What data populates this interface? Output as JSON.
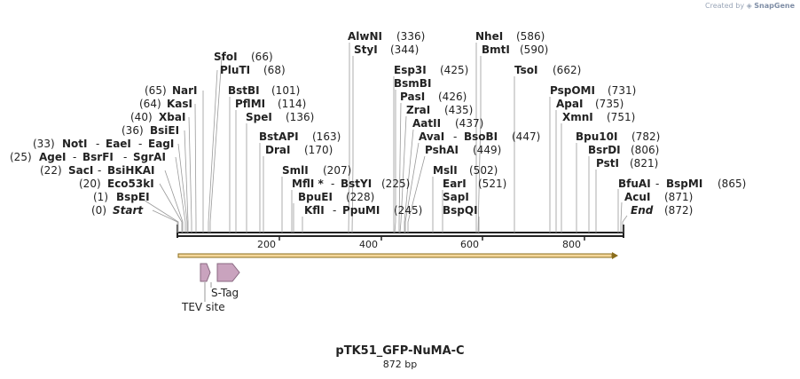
{
  "header": {
    "created_by": "Created by",
    "brand": "SnapGene"
  },
  "plasmid": {
    "name": "pTK51_GFP-NuMA-C",
    "length_label": "872 bp",
    "length": 872
  },
  "axis_ticks": [
    "200",
    "400",
    "600",
    "800"
  ],
  "sites": [
    {
      "name": "Start",
      "pos": "(0)",
      "italic": true
    },
    {
      "name": "BspEI",
      "pos": "(1)"
    },
    {
      "name": "Eco53kI",
      "pos": "(20)"
    },
    {
      "name": "SacI",
      "pos": "(22)"
    },
    {
      "name": "BsiHKAI",
      "pos": ""
    },
    {
      "name": "AgeI",
      "pos": "(25)"
    },
    {
      "name": "BsrFI",
      "pos": ""
    },
    {
      "name": "SgrAI",
      "pos": ""
    },
    {
      "name": "NotI",
      "pos": "(33)"
    },
    {
      "name": "EaeI",
      "pos": ""
    },
    {
      "name": "EagI",
      "pos": ""
    },
    {
      "name": "BsiEI",
      "pos": "(36)"
    },
    {
      "name": "XbaI",
      "pos": "(40)"
    },
    {
      "name": "KasI",
      "pos": "(64)"
    },
    {
      "name": "NarI",
      "pos": "(65)"
    },
    {
      "name": "SfoI",
      "pos": "(66)"
    },
    {
      "name": "PluTI",
      "pos": "(68)"
    },
    {
      "name": "BstBI",
      "pos": "(101)"
    },
    {
      "name": "PflMI",
      "pos": "(114)"
    },
    {
      "name": "SpeI",
      "pos": "(136)"
    },
    {
      "name": "BstAPI",
      "pos": "(163)"
    },
    {
      "name": "DraI",
      "pos": "(170)"
    },
    {
      "name": "SmlI",
      "pos": "(207)"
    },
    {
      "name": "MflI *",
      "pos": ""
    },
    {
      "name": "BstYI",
      "pos": "(225)"
    },
    {
      "name": "BpuEI",
      "pos": "(228)"
    },
    {
      "name": "KflI",
      "pos": ""
    },
    {
      "name": "PpuMI",
      "pos": "(245)"
    },
    {
      "name": "AlwNI",
      "pos": "(336)"
    },
    {
      "name": "StyI",
      "pos": "(344)"
    },
    {
      "name": "Esp3I",
      "pos": "(425)"
    },
    {
      "name": "BsmBI",
      "pos": ""
    },
    {
      "name": "PasI",
      "pos": "(426)"
    },
    {
      "name": "ZraI",
      "pos": "(435)"
    },
    {
      "name": "AatII",
      "pos": "(437)"
    },
    {
      "name": "AvaI",
      "pos": ""
    },
    {
      "name": "BsoBI",
      "pos": "(447)"
    },
    {
      "name": "PshAI",
      "pos": "(449)"
    },
    {
      "name": "MslI",
      "pos": "(502)"
    },
    {
      "name": "EarI",
      "pos": "(521)"
    },
    {
      "name": "SapI",
      "pos": ""
    },
    {
      "name": "BspQI",
      "pos": ""
    },
    {
      "name": "NheI",
      "pos": "(586)"
    },
    {
      "name": "BmtI",
      "pos": "(590)"
    },
    {
      "name": "TsoI",
      "pos": "(662)"
    },
    {
      "name": "PspOMI",
      "pos": "(731)"
    },
    {
      "name": "ApaI",
      "pos": "(735)"
    },
    {
      "name": "XmnI",
      "pos": "(751)"
    },
    {
      "name": "Bpu10I",
      "pos": "(782)"
    },
    {
      "name": "BsrDI",
      "pos": "(806)"
    },
    {
      "name": "PstI",
      "pos": "(821)"
    },
    {
      "name": "BfuAI",
      "pos": ""
    },
    {
      "name": "BspMI",
      "pos": "(865)"
    },
    {
      "name": "AcuI",
      "pos": "(871)"
    },
    {
      "name": "End",
      "pos": "(872)",
      "italic": true
    }
  ],
  "features": [
    {
      "name": "TEV site"
    },
    {
      "name": "S-Tag"
    }
  ],
  "colors": {
    "backbone": "#222222",
    "orf_fill": "#f5d79b",
    "orf_stroke": "#8a6d1c",
    "feature_fill": "#c9a3be",
    "feature_stroke": "#8a6a82",
    "leader": "#9a9a9a",
    "text": "#222222"
  }
}
